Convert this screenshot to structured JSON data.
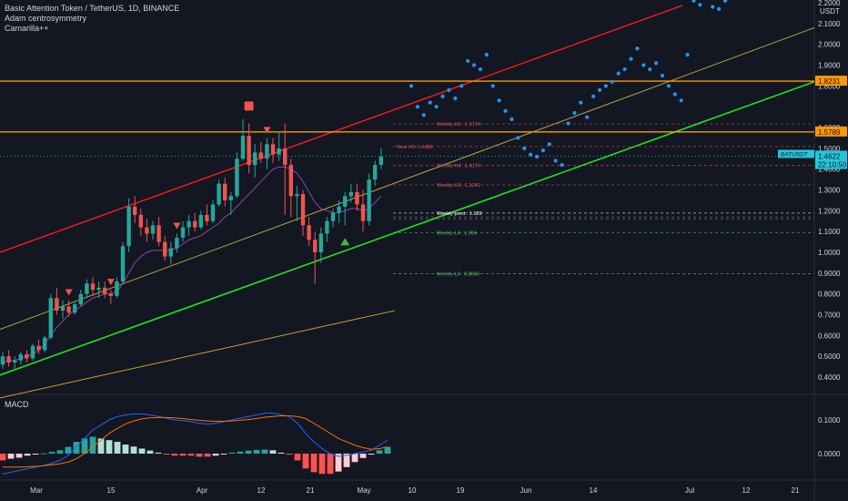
{
  "header": {
    "symbol_line": "Basic Attention Token / TetherUS, 1D, BINANCE",
    "indicator1": "Adam centrosymmetry",
    "indicator2": "Camarilla++",
    "currency": "USDT"
  },
  "macd_label": "MACD",
  "colors": {
    "background": "#131722",
    "up_candle": "#26a69a",
    "down_candle": "#ef5350",
    "red_channel": "#ff0000",
    "green_channel": "#00e600",
    "orange_level": "#ff9800",
    "projection_dots": "#2196f3",
    "price_tag": "#26c6da"
  },
  "chart_data": {
    "type": "candlestick",
    "title": "Basic Attention Token / TetherUS, 1D, BINANCE",
    "price_axis": {
      "ticks": [
        "2.2000",
        "2.1000",
        "2.0000",
        "1.9000",
        "1.8000",
        "1.6000",
        "1.5000",
        "1.4000",
        "1.3000",
        "1.2000",
        "1.1000",
        "1.0000",
        "0.9000",
        "0.8000",
        "0.7000",
        "0.6000",
        "0.5000",
        "0.4000"
      ],
      "range": [
        0.35,
        2.22
      ]
    },
    "time_axis": {
      "ticks": [
        "Mar",
        "15",
        "Apr",
        "12",
        "21",
        "May",
        "10",
        "19",
        "Jun",
        "14",
        "Jul",
        "12",
        "21"
      ]
    },
    "price_labels": [
      {
        "text": "1.8231",
        "value": 1.8231,
        "color": "#ff9800"
      },
      {
        "text": "1.5789",
        "value": 1.5789,
        "color": "#ff9800"
      },
      {
        "text": "BATUSDT",
        "value": 1.4622,
        "color": "#26c6da"
      },
      {
        "text": "1.4622",
        "value": 1.4622,
        "color": "#26c6da"
      },
      {
        "text": "22:10:50",
        "value": 1.4222,
        "color": "#26c6da"
      }
    ],
    "horizontal_levels": [
      {
        "value": 1.8231,
        "color": "#ff9800"
      },
      {
        "value": 1.5789,
        "color": "#ff9800"
      }
    ],
    "camarilla": [
      {
        "label": "Weekly H5 : 1.6174",
        "value": 1.6174,
        "color": "#ef5350"
      },
      {
        "label": "Next H3: 1.5086",
        "value": 1.5086,
        "color": "#ef5350"
      },
      {
        "label": "Weekly H4 : 1.4174",
        "value": 1.4174,
        "color": "#ef5350"
      },
      {
        "label": "Weekly H3 : 1.3241",
        "value": 1.3241,
        "color": "#ef5350"
      },
      {
        "label": "Weekly pivot : 1.189",
        "value": 1.189,
        "color": "#ffffff"
      },
      {
        "label": "Weekly L4 : 1.094",
        "value": 1.094,
        "color": "#66bb6a"
      },
      {
        "label": "Weekly L5 : 0.8969",
        "value": 0.8969,
        "color": "#66bb6a"
      }
    ],
    "candles": [
      [
        0.46,
        0.52,
        0.44,
        0.5
      ],
      [
        0.5,
        0.53,
        0.45,
        0.47
      ],
      [
        0.47,
        0.5,
        0.44,
        0.48
      ],
      [
        0.48,
        0.52,
        0.46,
        0.51
      ],
      [
        0.51,
        0.53,
        0.47,
        0.49
      ],
      [
        0.49,
        0.56,
        0.48,
        0.55
      ],
      [
        0.55,
        0.58,
        0.51,
        0.53
      ],
      [
        0.53,
        0.6,
        0.52,
        0.59
      ],
      [
        0.59,
        0.8,
        0.58,
        0.78
      ],
      [
        0.78,
        0.83,
        0.7,
        0.72
      ],
      [
        0.72,
        0.77,
        0.68,
        0.74
      ],
      [
        0.74,
        0.77,
        0.69,
        0.71
      ],
      [
        0.71,
        0.76,
        0.7,
        0.75
      ],
      [
        0.75,
        0.82,
        0.74,
        0.8
      ],
      [
        0.8,
        0.87,
        0.78,
        0.85
      ],
      [
        0.85,
        0.88,
        0.79,
        0.82
      ],
      [
        0.82,
        0.86,
        0.78,
        0.83
      ],
      [
        0.83,
        0.86,
        0.78,
        0.8
      ],
      [
        0.8,
        0.82,
        0.75,
        0.79
      ],
      [
        0.79,
        0.88,
        0.78,
        0.86
      ],
      [
        0.86,
        1.05,
        0.85,
        1.03
      ],
      [
        1.03,
        1.26,
        1.0,
        1.22
      ],
      [
        1.22,
        1.27,
        1.14,
        1.18
      ],
      [
        1.18,
        1.21,
        1.08,
        1.12
      ],
      [
        1.12,
        1.16,
        1.05,
        1.09
      ],
      [
        1.09,
        1.15,
        1.06,
        1.13
      ],
      [
        1.13,
        1.17,
        1.03,
        1.05
      ],
      [
        1.05,
        1.08,
        0.96,
        0.98
      ],
      [
        0.98,
        1.05,
        0.94,
        1.02
      ],
      [
        1.02,
        1.09,
        1.0,
        1.07
      ],
      [
        1.07,
        1.15,
        1.05,
        1.12
      ],
      [
        1.12,
        1.18,
        1.08,
        1.15
      ],
      [
        1.15,
        1.19,
        1.1,
        1.12
      ],
      [
        1.12,
        1.2,
        1.11,
        1.18
      ],
      [
        1.18,
        1.23,
        1.13,
        1.15
      ],
      [
        1.15,
        1.25,
        1.14,
        1.23
      ],
      [
        1.23,
        1.35,
        1.22,
        1.33
      ],
      [
        1.33,
        1.36,
        1.22,
        1.25
      ],
      [
        1.25,
        1.29,
        1.18,
        1.27
      ],
      [
        1.27,
        1.48,
        1.26,
        1.45
      ],
      [
        1.45,
        1.64,
        1.44,
        1.56
      ],
      [
        1.56,
        1.62,
        1.38,
        1.42
      ],
      [
        1.42,
        1.52,
        1.36,
        1.48
      ],
      [
        1.48,
        1.53,
        1.43,
        1.45
      ],
      [
        1.45,
        1.55,
        1.4,
        1.52
      ],
      [
        1.52,
        1.55,
        1.43,
        1.47
      ],
      [
        1.47,
        1.58,
        1.44,
        1.5
      ],
      [
        1.5,
        1.62,
        1.18,
        1.42
      ],
      [
        1.42,
        1.45,
        1.17,
        1.27
      ],
      [
        1.27,
        1.32,
        1.15,
        1.28
      ],
      [
        1.28,
        1.3,
        1.08,
        1.13
      ],
      [
        1.13,
        1.17,
        1.03,
        1.06
      ],
      [
        1.06,
        1.1,
        0.85,
        1.0
      ],
      [
        1.0,
        1.12,
        0.95,
        1.09
      ],
      [
        1.09,
        1.17,
        1.05,
        1.15
      ],
      [
        1.15,
        1.21,
        1.12,
        1.19
      ],
      [
        1.19,
        1.25,
        1.14,
        1.22
      ],
      [
        1.22,
        1.29,
        1.13,
        1.27
      ],
      [
        1.27,
        1.33,
        1.24,
        1.29
      ],
      [
        1.29,
        1.33,
        1.2,
        1.23
      ],
      [
        1.23,
        1.3,
        1.1,
        1.15
      ],
      [
        1.15,
        1.38,
        1.13,
        1.35
      ],
      [
        1.35,
        1.44,
        1.32,
        1.42
      ],
      [
        1.42,
        1.5,
        1.4,
        1.46
      ]
    ],
    "ema_short": [
      0.47,
      0.48,
      0.48,
      0.49,
      0.5,
      0.51,
      0.53,
      0.56,
      0.6,
      0.64,
      0.67,
      0.7,
      0.72,
      0.74,
      0.76,
      0.78,
      0.79,
      0.8,
      0.8,
      0.81,
      0.85,
      0.9,
      0.95,
      0.98,
      1.0,
      1.01,
      1.01,
      1.01,
      1.01,
      1.02,
      1.04,
      1.06,
      1.07,
      1.08,
      1.1,
      1.12,
      1.14,
      1.17,
      1.19,
      1.22,
      1.25,
      1.28,
      1.31,
      1.34,
      1.37,
      1.4,
      1.41,
      1.41,
      1.4,
      1.38,
      1.34,
      1.29,
      1.24,
      1.21,
      1.2,
      1.19,
      1.19,
      1.2,
      1.21,
      1.21,
      1.2,
      1.21,
      1.24,
      1.27
    ],
    "ma_long_start": 0.3,
    "ma_long_end": 0.72,
    "markers": [
      {
        "type": "sell",
        "index": 11
      },
      {
        "type": "sell",
        "index": 18
      },
      {
        "type": "sell",
        "index": 29
      },
      {
        "type": "sell",
        "index": 44
      },
      {
        "type": "sell_label",
        "index": 41
      },
      {
        "type": "buy",
        "index": 57
      }
    ],
    "projection": [
      [
        1.8
      ],
      [
        1.7
      ],
      [
        1.66
      ],
      [
        1.72
      ],
      [
        1.7
      ],
      [
        1.75
      ],
      [
        1.78
      ],
      [
        1.74
      ],
      [
        1.8
      ],
      [
        1.92
      ],
      [
        1.9
      ],
      [
        1.88
      ],
      [
        1.95
      ],
      [
        1.8
      ],
      [
        1.73
      ],
      [
        1.68
      ],
      [
        1.64
      ],
      [
        1.55
      ],
      [
        1.5
      ],
      [
        1.47
      ],
      [
        1.46
      ],
      [
        1.49
      ],
      [
        1.52
      ],
      [
        1.44
      ],
      [
        1.42
      ],
      [
        1.62
      ],
      [
        1.67
      ],
      [
        1.72
      ],
      [
        1.65
      ],
      [
        1.75
      ],
      [
        1.78
      ],
      [
        1.8
      ],
      [
        1.82
      ],
      [
        1.86
      ],
      [
        1.88
      ],
      [
        1.93
      ],
      [
        1.98
      ],
      [
        1.9
      ],
      [
        1.88
      ],
      [
        1.91
      ],
      [
        1.85
      ],
      [
        1.8
      ],
      [
        1.76
      ],
      [
        1.73
      ],
      [
        1.95
      ],
      [
        2.21
      ],
      [
        2.19
      ],
      [
        2.23
      ],
      [
        2.18
      ],
      [
        2.17
      ],
      [
        2.21
      ]
    ],
    "macd": {
      "axis_ticks": [
        "0.1000",
        "0.0000"
      ],
      "macd_line": [
        -0.06,
        -0.055,
        -0.05,
        -0.045,
        -0.04,
        -0.035,
        -0.028,
        -0.02,
        -0.005,
        0.02,
        0.045,
        0.07,
        0.085,
        0.1,
        0.11,
        0.115,
        0.118,
        0.118,
        0.115,
        0.11,
        0.105,
        0.1,
        0.098,
        0.095,
        0.09,
        0.088,
        0.09,
        0.095,
        0.1,
        0.105,
        0.11,
        0.115,
        0.12,
        0.12,
        0.115,
        0.11,
        0.09,
        0.06,
        0.035,
        0.015,
        0.0,
        -0.008,
        -0.005,
        0.0,
        0.005,
        0.01,
        0.025,
        0.04
      ],
      "signal_line": [
        -0.04,
        -0.04,
        -0.04,
        -0.039,
        -0.038,
        -0.036,
        -0.033,
        -0.03,
        -0.025,
        -0.015,
        0.0,
        0.02,
        0.04,
        0.06,
        0.075,
        0.088,
        0.097,
        0.103,
        0.106,
        0.107,
        0.107,
        0.106,
        0.104,
        0.101,
        0.099,
        0.097,
        0.096,
        0.096,
        0.097,
        0.099,
        0.101,
        0.104,
        0.108,
        0.11,
        0.112,
        0.112,
        0.11,
        0.104,
        0.09,
        0.075,
        0.06,
        0.045,
        0.035,
        0.025,
        0.018,
        0.013,
        0.015,
        0.02
      ],
      "hist": [
        -0.02,
        -0.015,
        -0.012,
        -0.006,
        -0.002,
        0.001,
        0.005,
        0.01,
        0.02,
        0.035,
        0.045,
        0.05,
        0.045,
        0.04,
        0.035,
        0.027,
        0.021,
        0.015,
        0.009,
        0.003,
        -0.002,
        -0.006,
        -0.006,
        -0.006,
        -0.009,
        -0.009,
        -0.006,
        -0.001,
        0.003,
        0.006,
        0.009,
        0.011,
        0.012,
        0.01,
        0.003,
        -0.002,
        -0.02,
        -0.044,
        -0.055,
        -0.06,
        -0.06,
        -0.053,
        -0.04,
        -0.025,
        -0.013,
        -0.003,
        0.01,
        0.02
      ]
    }
  }
}
